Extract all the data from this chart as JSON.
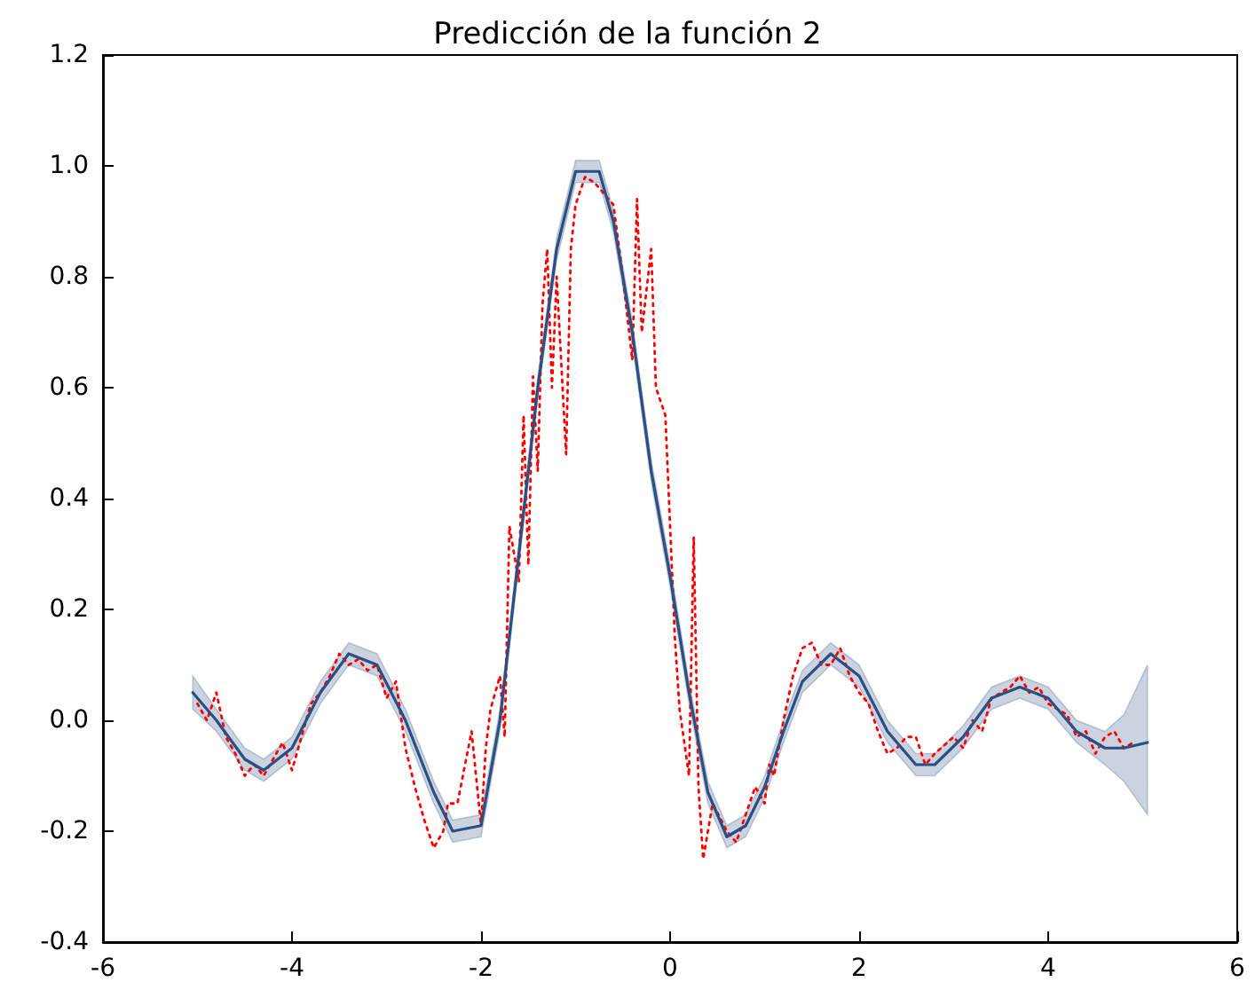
{
  "chart_data": {
    "type": "line",
    "title": "Predicción de la función 2",
    "grid": false,
    "marker": "none",
    "xlim": [
      -6,
      6
    ],
    "xticks": [
      -6,
      -4,
      -2,
      0,
      2,
      4,
      6
    ],
    "ylim": [
      -0.4,
      1.2
    ],
    "yticks": [
      {
        "value": -0.4,
        "label": "-0.4"
      },
      {
        "value": -0.2,
        "label": "-0.2"
      },
      {
        "value": 0,
        "label": "0.0"
      },
      {
        "value": 0.2,
        "label": "0.2"
      },
      {
        "value": 0.4,
        "label": "0.4"
      },
      {
        "value": 0.6,
        "label": "0.6"
      },
      {
        "value": 0.8,
        "label": "0.8"
      },
      {
        "value": 1,
        "label": "1.0"
      },
      {
        "value": 1.2,
        "label": "1.2"
      }
    ],
    "series": [
      {
        "color": "#ff0000",
        "line_style": "dotted",
        "x": [
          -5.0,
          -4.9,
          -4.8,
          -4.7,
          -4.6,
          -4.5,
          -4.4,
          -4.3,
          -4.2,
          -4.1,
          -4.0,
          -3.9,
          -3.8,
          -3.7,
          -3.6,
          -3.5,
          -3.4,
          -3.3,
          -3.2,
          -3.1,
          -3.0,
          -2.9,
          -2.8,
          -2.7,
          -2.6,
          -2.5,
          -2.4,
          -2.35,
          -2.25,
          -2.1,
          -2.0,
          -1.95,
          -1.9,
          -1.8,
          -1.75,
          -1.7,
          -1.6,
          -1.55,
          -1.5,
          -1.45,
          -1.4,
          -1.35,
          -1.3,
          -1.25,
          -1.2,
          -1.1,
          -1.05,
          -1.0,
          -0.9,
          -0.8,
          -0.7,
          -0.6,
          -0.5,
          -0.4,
          -0.35,
          -0.3,
          -0.2,
          -0.15,
          -0.05,
          0.0,
          0.05,
          0.1,
          0.2,
          0.25,
          0.3,
          0.35,
          0.45,
          0.6,
          0.7,
          0.8,
          0.9,
          1.0,
          1.05,
          1.1,
          1.2,
          1.3,
          1.4,
          1.5,
          1.6,
          1.7,
          1.8,
          1.9,
          2.0,
          2.1,
          2.2,
          2.3,
          2.4,
          2.5,
          2.6,
          2.7,
          2.8,
          3.0,
          3.1,
          3.2,
          3.3,
          3.4,
          3.6,
          3.7,
          3.8,
          3.9,
          4.0,
          4.1,
          4.2,
          4.3,
          4.4,
          4.5,
          4.6,
          4.7,
          4.8,
          4.9
        ],
        "values": [
          0.03,
          0.0,
          0.05,
          -0.03,
          -0.06,
          -0.1,
          -0.08,
          -0.1,
          -0.07,
          -0.04,
          -0.09,
          -0.03,
          0.03,
          0.05,
          0.08,
          0.12,
          0.1,
          0.11,
          0.09,
          0.1,
          0.04,
          0.07,
          -0.05,
          -0.12,
          -0.18,
          -0.23,
          -0.2,
          -0.15,
          -0.15,
          -0.02,
          -0.19,
          -0.05,
          0.02,
          0.08,
          -0.03,
          0.35,
          0.25,
          0.55,
          0.28,
          0.62,
          0.45,
          0.75,
          0.85,
          0.6,
          0.8,
          0.48,
          0.85,
          0.93,
          0.98,
          0.97,
          0.95,
          0.93,
          0.8,
          0.65,
          0.94,
          0.7,
          0.85,
          0.6,
          0.55,
          0.35,
          0.15,
          0.02,
          -0.1,
          0.33,
          -0.12,
          -0.25,
          -0.15,
          -0.2,
          -0.22,
          -0.17,
          -0.12,
          -0.15,
          -0.08,
          -0.1,
          0.0,
          0.08,
          0.13,
          0.14,
          0.1,
          0.1,
          0.13,
          0.08,
          0.05,
          0.03,
          -0.02,
          -0.06,
          -0.05,
          -0.03,
          -0.03,
          -0.08,
          -0.06,
          -0.03,
          -0.05,
          0.0,
          -0.02,
          0.04,
          0.06,
          0.08,
          0.05,
          0.06,
          0.03,
          0.02,
          0.01,
          -0.03,
          -0.02,
          -0.06,
          -0.03,
          -0.02,
          -0.05,
          -0.04
        ]
      },
      {
        "color": "#2b4f81",
        "line_style": "solid",
        "x": [
          -5.05,
          -4.8,
          -4.5,
          -4.3,
          -4.0,
          -3.7,
          -3.4,
          -3.1,
          -2.8,
          -2.5,
          -2.3,
          -2.0,
          -1.8,
          -1.6,
          -1.4,
          -1.2,
          -1.0,
          -0.75,
          -0.6,
          -0.4,
          -0.2,
          0.0,
          0.2,
          0.4,
          0.6,
          0.8,
          1.0,
          1.2,
          1.4,
          1.7,
          2.0,
          2.3,
          2.6,
          2.8,
          3.1,
          3.4,
          3.7,
          4.0,
          4.3,
          4.6,
          4.8,
          5.05
        ],
        "values": [
          0.05,
          0.0,
          -0.07,
          -0.09,
          -0.05,
          0.05,
          0.12,
          0.1,
          0.0,
          -0.13,
          -0.2,
          -0.19,
          0.0,
          0.3,
          0.6,
          0.85,
          0.99,
          0.99,
          0.9,
          0.7,
          0.45,
          0.26,
          0.05,
          -0.13,
          -0.21,
          -0.19,
          -0.12,
          -0.02,
          0.07,
          0.12,
          0.08,
          -0.02,
          -0.08,
          -0.08,
          -0.03,
          0.04,
          0.06,
          0.04,
          -0.02,
          -0.05,
          -0.05,
          -0.04
        ],
        "lower": [
          0.02,
          -0.02,
          -0.09,
          -0.11,
          -0.07,
          0.03,
          0.1,
          0.08,
          -0.02,
          -0.15,
          -0.22,
          -0.21,
          -0.02,
          0.28,
          0.58,
          0.83,
          0.97,
          0.97,
          0.88,
          0.68,
          0.43,
          0.24,
          0.03,
          -0.15,
          -0.23,
          -0.21,
          -0.14,
          -0.04,
          0.05,
          0.1,
          0.06,
          -0.04,
          -0.1,
          -0.1,
          -0.05,
          0.02,
          0.04,
          0.02,
          -0.04,
          -0.08,
          -0.11,
          -0.17
        ],
        "upper": [
          0.08,
          0.02,
          -0.05,
          -0.07,
          -0.03,
          0.07,
          0.14,
          0.12,
          0.02,
          -0.11,
          -0.18,
          -0.17,
          0.02,
          0.32,
          0.62,
          0.87,
          1.01,
          1.01,
          0.92,
          0.72,
          0.47,
          0.28,
          0.07,
          -0.11,
          -0.19,
          -0.17,
          -0.1,
          0.0,
          0.09,
          0.14,
          0.1,
          0.0,
          -0.06,
          -0.06,
          -0.01,
          0.06,
          0.08,
          0.06,
          0.0,
          -0.02,
          0.01,
          0.1
        ]
      }
    ]
  }
}
